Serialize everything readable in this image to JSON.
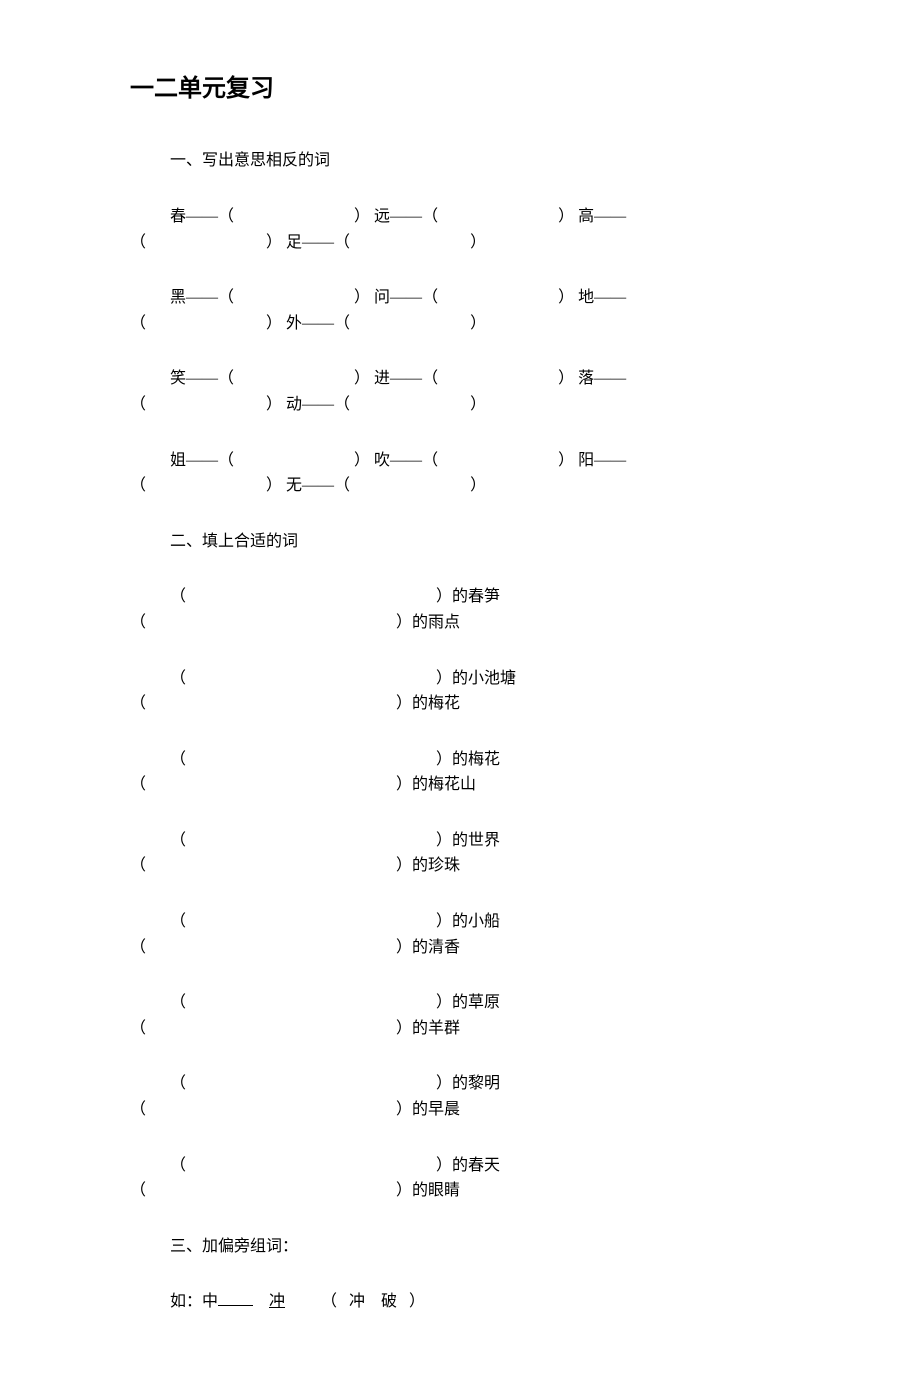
{
  "title": "一二单元复习",
  "section1": {
    "heading": "一、写出意思相反的词",
    "rows": [
      {
        "a": "春——",
        "b": "远——",
        "c": "高——",
        "d": "足——"
      },
      {
        "a": "黑——",
        "b": "问——",
        "c": "地——",
        "d": "外——"
      },
      {
        "a": "笑——",
        "b": "进——",
        "c": "落——",
        "d": "动——"
      },
      {
        "a": "姐——",
        "b": "吹——",
        "c": "阳——",
        "d": "无——"
      }
    ]
  },
  "section2": {
    "heading": "二、填上合适的词",
    "pairs": [
      {
        "a": "的春笋",
        "b": "的雨点"
      },
      {
        "a": "的小池塘",
        "b": "的梅花"
      },
      {
        "a": "的梅花",
        "b": "的梅花山"
      },
      {
        "a": "的世界",
        "b": "的珍珠"
      },
      {
        "a": "的小船",
        "b": "的清香"
      },
      {
        "a": "的草原",
        "b": "的羊群"
      },
      {
        "a": "的黎明",
        "b": "的早晨"
      },
      {
        "a": "的春天",
        "b": "的眼睛"
      }
    ]
  },
  "section3": {
    "heading": "三、加偏旁组词：",
    "example_prefix": "如：中",
    "example_answer": "冲",
    "example_compound": "冲　破",
    "paren_open": "（",
    "paren_close": "）"
  },
  "paren_open": "（",
  "paren_close": "）",
  "colors": {
    "background": "#ffffff",
    "text": "#000000"
  },
  "typography": {
    "body_fontsize": 16,
    "title_fontsize": 24,
    "font_family": "SimSun"
  }
}
